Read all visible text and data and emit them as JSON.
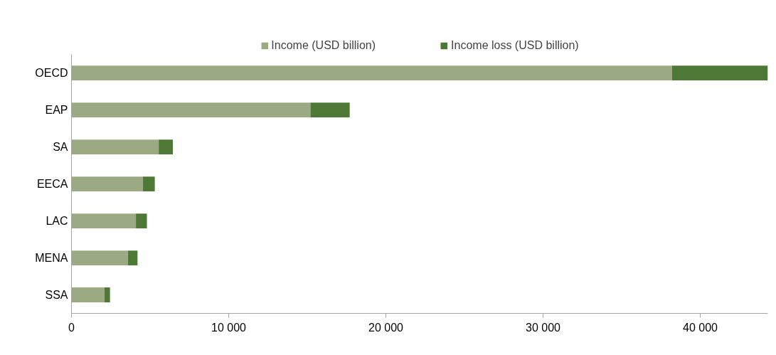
{
  "chart_data": {
    "type": "bar",
    "orientation": "horizontal",
    "stacked": true,
    "categories": [
      "OECD",
      "EAP",
      "SA",
      "EECA",
      "LAC",
      "MENA",
      "SSA"
    ],
    "series": [
      {
        "name": "Income (USD billion)",
        "color": "#9caa84",
        "values": [
          38200,
          15200,
          5550,
          4550,
          4100,
          3600,
          2100
        ]
      },
      {
        "name": "Income loss (USD billion)",
        "color": "#4e7836",
        "values": [
          6100,
          2500,
          900,
          750,
          700,
          600,
          350
        ]
      }
    ],
    "xlim": [
      0,
      44300
    ],
    "xticks": [
      0,
      {
        "value": 10000,
        "label": "10 000"
      },
      {
        "value": 20000,
        "label": "20 000"
      },
      {
        "value": 30000,
        "label": "30 000"
      },
      {
        "value": 40000,
        "label": "40 000"
      }
    ],
    "grid": false,
    "legend": "top"
  }
}
